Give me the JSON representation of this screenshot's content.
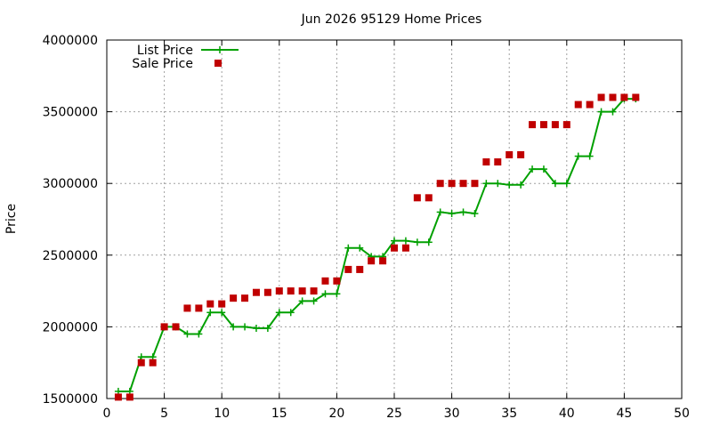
{
  "chart_data": {
    "type": "line",
    "title": "Jun 2026 95129 Home Prices",
    "xlabel": "",
    "ylabel": "Price",
    "xlim": [
      0,
      50
    ],
    "ylim": [
      1500000,
      4000000
    ],
    "x_ticks": [
      "0",
      "5",
      "10",
      "15",
      "20",
      "25",
      "30",
      "35",
      "40",
      "45",
      "50"
    ],
    "y_ticks": [
      "1500000",
      "2000000",
      "2500000",
      "3000000",
      "3500000",
      "4000000"
    ],
    "grid": true,
    "legend_position": "top-left",
    "series": [
      {
        "name": "List Price",
        "style": "linespoints",
        "color": "#00a000",
        "marker": "plus",
        "x": [
          1,
          2,
          3,
          4,
          5,
          6,
          7,
          8,
          9,
          10,
          11,
          12,
          13,
          14,
          15,
          16,
          17,
          18,
          19,
          20,
          21,
          22,
          23,
          24,
          25,
          26,
          27,
          28,
          29,
          30,
          31,
          32,
          33,
          34,
          35,
          36,
          37,
          38,
          39,
          40,
          41,
          42,
          43,
          44,
          45,
          46
        ],
        "y": [
          1550000,
          1550000,
          1790000,
          1790000,
          2000000,
          2000000,
          1950000,
          1950000,
          2100000,
          2100000,
          2000000,
          2000000,
          1990000,
          1990000,
          2100000,
          2100000,
          2180000,
          2180000,
          2230000,
          2230000,
          2550000,
          2550000,
          2490000,
          2490000,
          2600000,
          2600000,
          2590000,
          2590000,
          2800000,
          2790000,
          2800000,
          2790000,
          3000000,
          3000000,
          2990000,
          2990000,
          3100000,
          3100000,
          3000000,
          3000000,
          3190000,
          3190000,
          3500000,
          3500000,
          3590000,
          3590000
        ]
      },
      {
        "name": "Sale Price",
        "style": "points",
        "color": "#c00000",
        "marker": "square",
        "x": [
          1,
          2,
          3,
          4,
          5,
          6,
          7,
          8,
          9,
          10,
          11,
          12,
          13,
          14,
          15,
          16,
          17,
          18,
          19,
          20,
          21,
          22,
          23,
          24,
          25,
          26,
          27,
          28,
          29,
          30,
          31,
          32,
          33,
          34,
          35,
          36,
          37,
          38,
          39,
          40,
          41,
          42,
          43,
          44,
          45,
          46
        ],
        "y": [
          1510000,
          1510000,
          1750000,
          1750000,
          2000000,
          2000000,
          2130000,
          2130000,
          2160000,
          2160000,
          2200000,
          2200000,
          2240000,
          2240000,
          2250000,
          2250000,
          2250000,
          2250000,
          2320000,
          2320000,
          2400000,
          2400000,
          2460000,
          2460000,
          2550000,
          2550000,
          2900000,
          2900000,
          3000000,
          3000000,
          3000000,
          3000000,
          3150000,
          3150000,
          3200000,
          3200000,
          3410000,
          3410000,
          3410000,
          3410000,
          3550000,
          3550000,
          3600000,
          3600000,
          3600000,
          3600000
        ]
      }
    ]
  }
}
